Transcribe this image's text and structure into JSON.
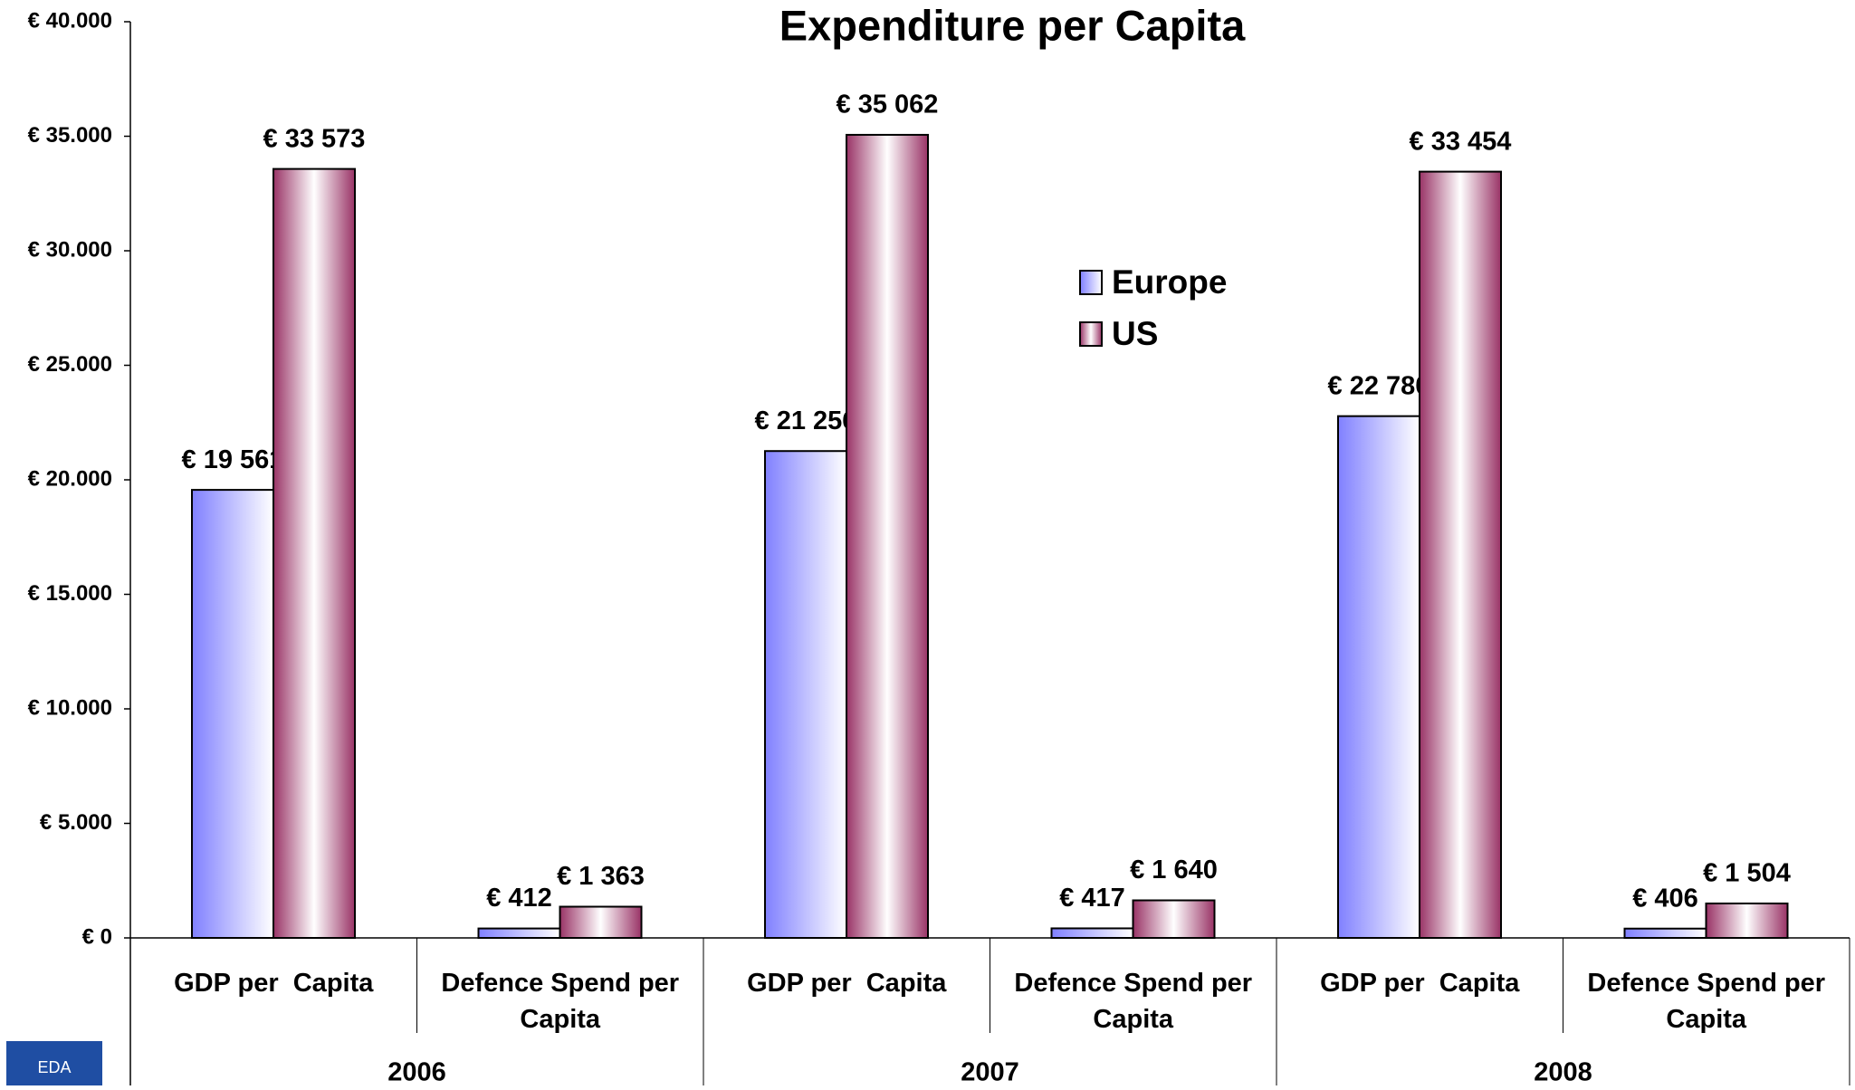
{
  "chart_data": {
    "type": "bar",
    "title": "Expenditure per Capita",
    "categories": [
      "GDP per  Capita",
      "Defence Spend per Capita",
      "GDP per  Capita",
      "Defence Spend per Capita",
      "GDP per  Capita",
      "Defence Spend per Capita"
    ],
    "groups": [
      "2006",
      "2007",
      "2008"
    ],
    "series": [
      {
        "name": "Europe",
        "color": "#8080ff",
        "values": [
          19561,
          412,
          21256,
          417,
          22780,
          406
        ],
        "value_labels": [
          "€ 19 561",
          "€ 412",
          "€ 21 256",
          "€ 417",
          "€ 22 780",
          "€ 406"
        ]
      },
      {
        "name": "US",
        "color": "#993366",
        "values": [
          33573,
          1363,
          35062,
          1640,
          33454,
          1504
        ],
        "value_labels": [
          "€ 33 573",
          "€ 1 363",
          "€ 35 062",
          "€ 1 640",
          "€ 33 454",
          "€ 1 504"
        ]
      }
    ],
    "ylim": [
      0,
      40000
    ],
    "yticks": [
      {
        "value": 0,
        "label": "€ 0"
      },
      {
        "value": 5000,
        "label": "€ 5.000"
      },
      {
        "value": 10000,
        "label": "€ 10.000"
      },
      {
        "value": 15000,
        "label": "€ 15.000"
      },
      {
        "value": 20000,
        "label": "€ 20.000"
      },
      {
        "value": 25000,
        "label": "€ 25.000"
      },
      {
        "value": 30000,
        "label": "€ 30.000"
      },
      {
        "value": 35000,
        "label": "€ 35.000"
      },
      {
        "value": 40000,
        "label": "€ 40.000"
      }
    ],
    "grid": false,
    "legend": "center",
    "logo": "EDA"
  }
}
